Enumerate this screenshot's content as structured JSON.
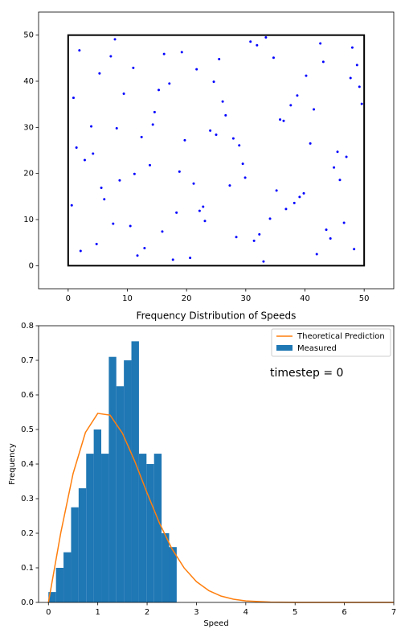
{
  "chart_data": [
    {
      "type": "scatter",
      "color": "#0000ff",
      "xlim": [
        -5,
        55
      ],
      "ylim": [
        -5,
        55
      ],
      "xticks": [
        0,
        10,
        20,
        30,
        40,
        50
      ],
      "yticks": [
        0,
        10,
        20,
        30,
        40,
        50
      ],
      "box": {
        "x": [
          0,
          50
        ],
        "y": [
          0,
          50
        ]
      },
      "x": [
        2.1,
        5.3,
        8.7,
        12.4,
        15.9,
        19.2,
        22.8,
        26.1,
        29.5,
        33.0,
        36.4,
        39.8,
        43.1,
        46.6,
        49.2,
        1.4,
        4.8,
        7.9,
        11.2,
        14.6,
        18.3,
        21.7,
        25.0,
        28.4,
        31.9,
        35.2,
        38.7,
        42.0,
        45.5,
        48.8,
        0.6,
        3.9,
        7.2,
        10.5,
        13.8,
        17.1,
        20.6,
        24.0,
        27.3,
        30.8,
        34.1,
        37.6,
        40.9,
        44.3,
        47.7,
        2.8,
        6.1,
        9.4,
        12.9,
        16.2,
        19.7,
        23.1,
        26.6,
        29.9,
        33.4,
        36.8,
        40.2,
        43.6,
        47.0,
        49.6,
        1.9,
        5.6,
        8.2,
        11.7,
        15.3,
        18.8,
        22.2,
        25.5,
        28.9,
        32.3,
        35.8,
        39.1,
        42.6,
        45.9,
        48.3,
        0.9,
        4.2,
        7.6,
        11.0,
        14.3,
        17.7,
        21.2,
        24.6,
        27.9,
        31.4,
        34.7,
        38.2,
        41.5,
        44.9,
        48.0
      ],
      "y": [
        3.2,
        41.7,
        18.5,
        27.9,
        7.4,
        46.3,
        12.8,
        35.6,
        22.1,
        0.9,
        31.4,
        15.7,
        44.2,
        9.3,
        38.8,
        25.6,
        4.7,
        49.1,
        19.9,
        33.3,
        11.5,
        42.6,
        28.4,
        6.2,
        47.8,
        16.3,
        36.9,
        2.5,
        24.7,
        43.5,
        13.1,
        30.2,
        45.4,
        8.6,
        21.8,
        39.5,
        1.7,
        29.3,
        17.4,
        48.6,
        10.2,
        34.8,
        26.5,
        5.9,
        40.7,
        22.9,
        14.4,
        37.3,
        3.8,
        45.9,
        27.2,
        9.7,
        32.6,
        19.1,
        49.5,
        12.3,
        41.2,
        7.8,
        23.6,
        35.1,
        46.7,
        16.9,
        29.8,
        2.2,
        38.1,
        20.4,
        11.9,
        44.8,
        26.1,
        6.8,
        31.7,
        14.9,
        48.2,
        18.6,
        3.6,
        36.4,
        24.3,
        9.1,
        42.9,
        30.6,
        1.3,
        17.8,
        39.9,
        27.6,
        5.4,
        45.1,
        13.6,
        33.9,
        21.3,
        47.3
      ]
    },
    {
      "type": "histogram",
      "title": "Frequency Distribution of Speeds",
      "xlabel": "Speed",
      "ylabel": "Frequency",
      "annotation": "timestep = 0",
      "legend": "upper right",
      "xlim": [
        -0.2,
        7
      ],
      "ylim": [
        0,
        0.8
      ],
      "xticks": [
        0,
        1,
        2,
        3,
        4,
        5,
        6,
        7
      ],
      "yticks": [
        {
          "value": 0,
          "label": "0.0"
        },
        0.1,
        0.2,
        0.3,
        0.4,
        0.5,
        0.6,
        0.7,
        0.8
      ],
      "name": "Measured",
      "color": "#1f77b4",
      "bins": [
        0,
        0.153,
        0.306,
        0.459,
        0.612,
        0.765,
        0.918,
        1.071,
        1.224,
        1.376,
        1.529,
        1.682,
        1.835,
        1.988,
        2.141,
        2.294,
        2.447,
        2.6
      ],
      "counts": [
        0.03,
        0.1,
        0.145,
        0.275,
        0.33,
        0.43,
        0.5,
        0.43,
        0.71,
        0.625,
        0.7,
        0.755,
        0.43,
        0.4,
        0.43,
        0.2,
        0.16
      ],
      "line": {
        "name": "Theoretical Prediction",
        "color": "#ff7f0e",
        "x": [
          0,
          0.25,
          0.5,
          0.75,
          1,
          1.25,
          1.5,
          1.75,
          2,
          2.25,
          2.5,
          2.75,
          3,
          3.25,
          3.5,
          3.75,
          4,
          4.5,
          5,
          6,
          7
        ],
        "y": [
          0,
          0.2013,
          0.3727,
          0.4913,
          0.5467,
          0.5415,
          0.4893,
          0.4081,
          0.3166,
          0.2295,
          0.1559,
          0.0998,
          0.0601,
          0.0342,
          0.0183,
          0.0093,
          0.0045,
          0.0009,
          0.0001,
          0,
          0
        ]
      }
    }
  ]
}
